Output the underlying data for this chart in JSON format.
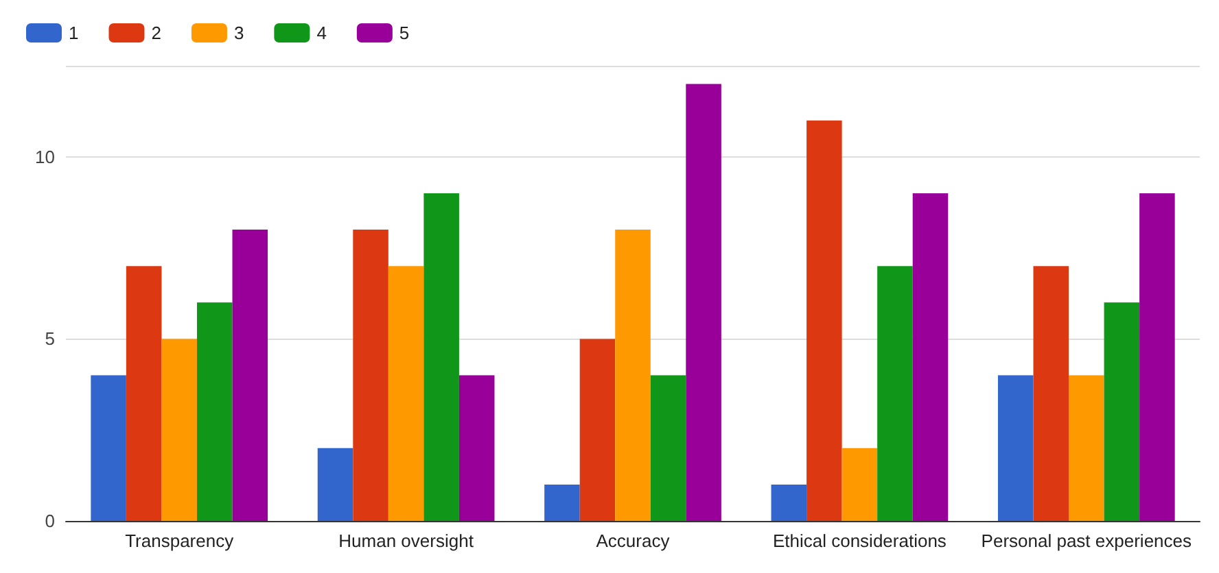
{
  "chart_data": {
    "type": "bar",
    "categories": [
      "Transparency",
      "Human oversight",
      "Accuracy",
      "Ethical considerations",
      "Personal past experiences"
    ],
    "series": [
      {
        "name": "1",
        "color": "#3366cc",
        "values": [
          4,
          2,
          1,
          1,
          4
        ]
      },
      {
        "name": "2",
        "color": "#dc3912",
        "values": [
          7,
          8,
          5,
          11,
          7
        ]
      },
      {
        "name": "3",
        "color": "#ff9900",
        "values": [
          5,
          7,
          8,
          2,
          4
        ]
      },
      {
        "name": "4",
        "color": "#109618",
        "values": [
          6,
          9,
          4,
          7,
          6
        ]
      },
      {
        "name": "5",
        "color": "#990099",
        "values": [
          8,
          4,
          12,
          9,
          9
        ]
      }
    ],
    "ylim": [
      0,
      12.5
    ],
    "yticks": [
      0,
      5,
      10,
      {
        "value": 12.5,
        "label": null
      }
    ],
    "grid": "y",
    "legend": "top left"
  }
}
